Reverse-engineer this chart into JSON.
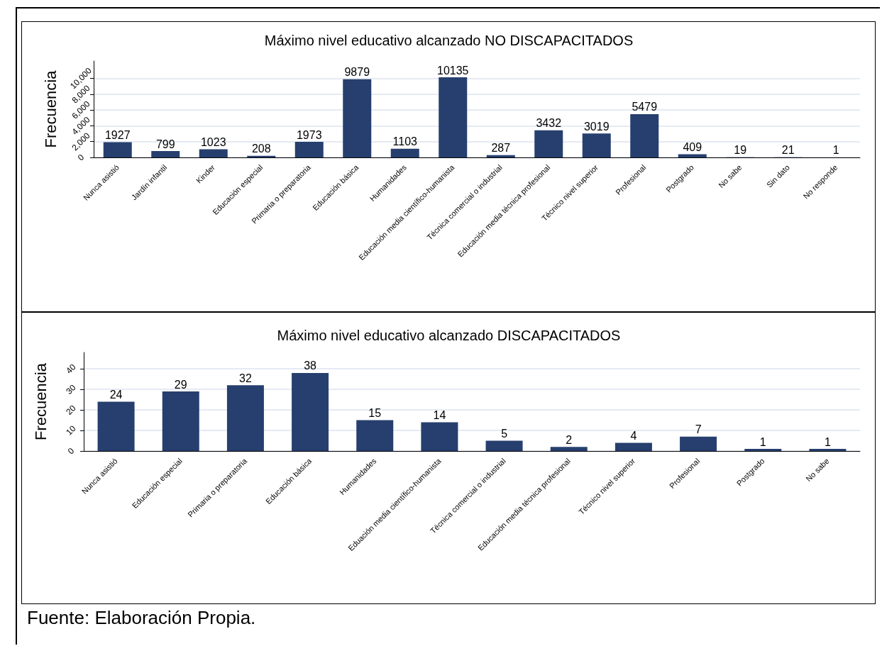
{
  "chart_data": [
    {
      "type": "bar",
      "title": "Máximo nivel educativo alcanzado NO DISCAPACITADOS",
      "ylabel": "Frecuencia",
      "categories": [
        "Nunca asistió",
        "Jardín infantil",
        "Kinder",
        "Educación especial",
        "Primaria o preparatoria",
        "Educación básica",
        "Humanidades",
        "Educación media científico-humanista",
        "Técnica comercial o industrial",
        "Educación media técnica profesional",
        "Técnico nivel superior",
        "Profesional",
        "Postgrado",
        "No sabe",
        "Sin dato",
        "No responde"
      ],
      "values": [
        1927,
        799,
        1023,
        208,
        1973,
        9879,
        1103,
        10135,
        287,
        3432,
        3019,
        5479,
        409,
        19,
        21,
        1
      ],
      "color": "#263f6e",
      "ylim": [
        0,
        12200
      ],
      "yticks": [
        0,
        {
          "value": 2000,
          "label": "2,000"
        },
        {
          "value": 4000,
          "label": "4,000"
        },
        {
          "value": 6000,
          "label": "6,000"
        },
        {
          "value": 8000,
          "label": "8,000"
        },
        {
          "value": 10000,
          "label": "10,000"
        }
      ],
      "grid": "y",
      "data_labels": true
    },
    {
      "type": "bar",
      "title": "Máximo nivel educativo alcanzado DISCAPACITADOS",
      "ylabel": "Frecuencia",
      "categories": [
        "Nunca asistió",
        "Educación especial",
        "Primaria o preparatoria",
        "Educación básica",
        "Humanidades",
        "Eduación media científico-humanista",
        "Técnica comercial o industrial",
        "Educación media técnica profesional",
        "Técnico nivel superior",
        "Profesional",
        "Postgrado",
        "No sabe"
      ],
      "values": [
        24,
        29,
        32,
        38,
        15,
        14,
        5,
        2,
        4,
        7,
        1,
        1
      ],
      "color": "#263f6e",
      "ylim": [
        0,
        48
      ],
      "yticks": [
        0,
        10,
        20,
        30,
        40
      ],
      "grid": "y",
      "data_labels": true,
      "annotations": [
        "Fuente: Elaboración Propia."
      ]
    }
  ]
}
